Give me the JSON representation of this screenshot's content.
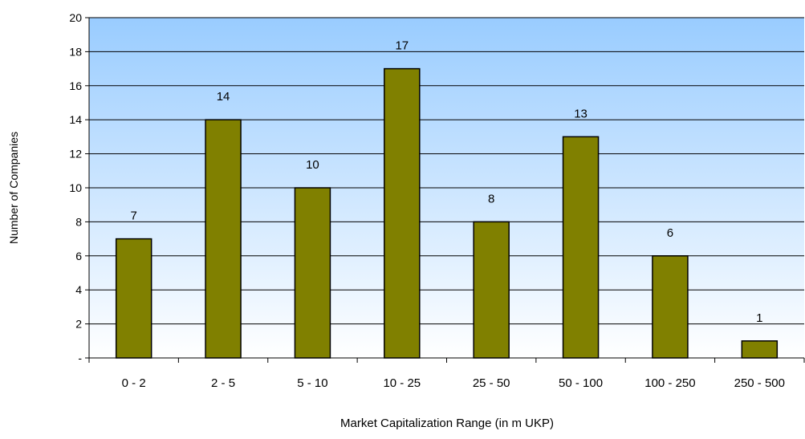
{
  "chart_data": {
    "type": "bar",
    "title": "",
    "xlabel": "Market Capitalization Range (in m UKP)",
    "ylabel": "Number of Companies",
    "categories": [
      "0 - 2",
      "2 - 5",
      "5 - 10",
      "10 - 25",
      "25 - 50",
      "50 - 100",
      "100 - 250",
      "250 - 500"
    ],
    "values": [
      7,
      14,
      10,
      17,
      8,
      13,
      6,
      1
    ],
    "data_labels": [
      "7",
      "14",
      "10",
      "17",
      "8",
      "13",
      "6",
      "1"
    ],
    "ylim": [
      0,
      20
    ],
    "y_ticks": [
      0,
      2,
      4,
      6,
      8,
      10,
      12,
      14,
      16,
      18,
      20
    ],
    "y_tick_labels": [
      "-",
      "2",
      "4",
      "6",
      "8",
      "10",
      "12",
      "14",
      "16",
      "18",
      "20"
    ],
    "grid": true,
    "legend": "none",
    "colors": {
      "bar_fill": "#808000",
      "bar_stroke": "#000000",
      "plot_bg_top": "#99CCFF",
      "plot_bg_bottom": "#FFFFFF",
      "gridline": "#000000"
    }
  }
}
